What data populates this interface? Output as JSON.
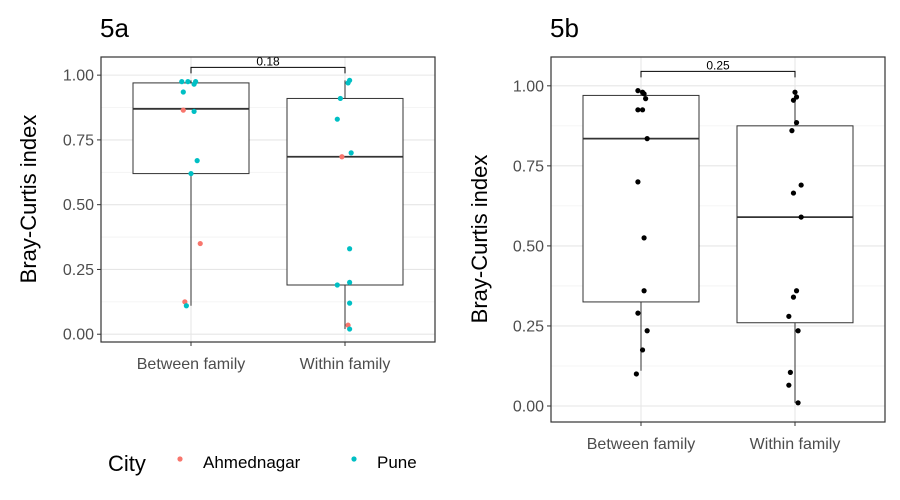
{
  "colors": {
    "Ahmednagar": "#F8766D",
    "Pune": "#00BFC4",
    "Default": "#000000"
  },
  "legend": {
    "title": "City",
    "items": [
      "Ahmednagar",
      "Pune"
    ]
  },
  "chart_data": [
    {
      "id": "5a",
      "type": "boxplot",
      "title": "5a",
      "xlabel": "",
      "ylabel": "Bray-Curtis index",
      "ylim": [
        -0.03,
        1.07
      ],
      "yticks": [
        0.0,
        0.25,
        0.5,
        0.75,
        1.0
      ],
      "ytick_labels": [
        "0.00",
        "0.25",
        "0.50",
        "0.75",
        "1.00"
      ],
      "grid": true,
      "categories": [
        "Between family",
        "Within family"
      ],
      "boxes": [
        {
          "category": "Between family",
          "whisker_low": 0.11,
          "q1": 0.62,
          "median": 0.87,
          "q3": 0.97,
          "whisker_high": 0.98
        },
        {
          "category": "Within family",
          "whisker_low": 0.02,
          "q1": 0.19,
          "median": 0.685,
          "q3": 0.91,
          "whisker_high": 0.98
        }
      ],
      "comparison": {
        "label": "0.18",
        "y": 1.03
      },
      "points": [
        {
          "cat": 0,
          "jitter": -0.06,
          "y": 0.975,
          "city": "Pune"
        },
        {
          "cat": 0,
          "jitter": -0.02,
          "y": 0.975,
          "city": "Pune"
        },
        {
          "cat": 0,
          "jitter": 0.03,
          "y": 0.975,
          "city": "Pune"
        },
        {
          "cat": 0,
          "jitter": 0.02,
          "y": 0.965,
          "city": "Pune"
        },
        {
          "cat": 0,
          "jitter": -0.05,
          "y": 0.935,
          "city": "Pune"
        },
        {
          "cat": 0,
          "jitter": -0.05,
          "y": 0.865,
          "city": "Ahmednagar"
        },
        {
          "cat": 0,
          "jitter": 0.02,
          "y": 0.86,
          "city": "Pune"
        },
        {
          "cat": 0,
          "jitter": 0.04,
          "y": 0.67,
          "city": "Pune"
        },
        {
          "cat": 0,
          "jitter": 0.0,
          "y": 0.62,
          "city": "Pune"
        },
        {
          "cat": 0,
          "jitter": 0.06,
          "y": 0.35,
          "city": "Ahmednagar"
        },
        {
          "cat": 0,
          "jitter": -0.04,
          "y": 0.125,
          "city": "Ahmednagar"
        },
        {
          "cat": 0,
          "jitter": -0.03,
          "y": 0.11,
          "city": "Pune"
        },
        {
          "cat": 1,
          "jitter": 0.03,
          "y": 0.98,
          "city": "Pune"
        },
        {
          "cat": 1,
          "jitter": 0.02,
          "y": 0.97,
          "city": "Pune"
        },
        {
          "cat": 1,
          "jitter": -0.03,
          "y": 0.91,
          "city": "Pune"
        },
        {
          "cat": 1,
          "jitter": -0.05,
          "y": 0.83,
          "city": "Pune"
        },
        {
          "cat": 1,
          "jitter": 0.04,
          "y": 0.7,
          "city": "Pune"
        },
        {
          "cat": 1,
          "jitter": -0.02,
          "y": 0.685,
          "city": "Ahmednagar"
        },
        {
          "cat": 1,
          "jitter": 0.03,
          "y": 0.33,
          "city": "Pune"
        },
        {
          "cat": 1,
          "jitter": 0.03,
          "y": 0.2,
          "city": "Pune"
        },
        {
          "cat": 1,
          "jitter": -0.05,
          "y": 0.19,
          "city": "Pune"
        },
        {
          "cat": 1,
          "jitter": 0.03,
          "y": 0.12,
          "city": "Pune"
        },
        {
          "cat": 1,
          "jitter": 0.02,
          "y": 0.035,
          "city": "Ahmednagar"
        },
        {
          "cat": 1,
          "jitter": 0.03,
          "y": 0.02,
          "city": "Pune"
        }
      ]
    },
    {
      "id": "5b",
      "type": "boxplot",
      "title": "5b",
      "xlabel": "",
      "ylabel": "Bray-Curtis index",
      "ylim": [
        -0.05,
        1.09
      ],
      "yticks": [
        0.0,
        0.25,
        0.5,
        0.75,
        1.0
      ],
      "ytick_labels": [
        "0.00",
        "0.25",
        "0.50",
        "0.75",
        "1.00"
      ],
      "grid": true,
      "categories": [
        "Between family",
        "Within family"
      ],
      "boxes": [
        {
          "category": "Between family",
          "whisker_low": 0.11,
          "q1": 0.325,
          "median": 0.835,
          "q3": 0.97,
          "whisker_high": 0.985
        },
        {
          "category": "Within family",
          "whisker_low": 0.01,
          "q1": 0.26,
          "median": 0.59,
          "q3": 0.875,
          "whisker_high": 0.98
        }
      ],
      "comparison": {
        "label": "0.25",
        "y": 1.045
      },
      "points": [
        {
          "cat": 0,
          "jitter": -0.02,
          "y": 0.985,
          "city": null
        },
        {
          "cat": 0,
          "jitter": 0.01,
          "y": 0.98,
          "city": null
        },
        {
          "cat": 0,
          "jitter": 0.02,
          "y": 0.975,
          "city": null
        },
        {
          "cat": 0,
          "jitter": 0.03,
          "y": 0.96,
          "city": null
        },
        {
          "cat": 0,
          "jitter": -0.02,
          "y": 0.925,
          "city": null
        },
        {
          "cat": 0,
          "jitter": 0.01,
          "y": 0.925,
          "city": null
        },
        {
          "cat": 0,
          "jitter": 0.04,
          "y": 0.835,
          "city": null
        },
        {
          "cat": 0,
          "jitter": -0.02,
          "y": 0.7,
          "city": null
        },
        {
          "cat": 0,
          "jitter": 0.02,
          "y": 0.525,
          "city": null
        },
        {
          "cat": 0,
          "jitter": 0.02,
          "y": 0.36,
          "city": null
        },
        {
          "cat": 0,
          "jitter": -0.02,
          "y": 0.29,
          "city": null
        },
        {
          "cat": 0,
          "jitter": 0.04,
          "y": 0.235,
          "city": null
        },
        {
          "cat": 0,
          "jitter": 0.01,
          "y": 0.175,
          "city": null
        },
        {
          "cat": 0,
          "jitter": -0.03,
          "y": 0.1,
          "city": null
        },
        {
          "cat": 1,
          "jitter": 0.0,
          "y": 0.98,
          "city": null
        },
        {
          "cat": 1,
          "jitter": 0.01,
          "y": 0.965,
          "city": null
        },
        {
          "cat": 1,
          "jitter": -0.01,
          "y": 0.955,
          "city": null
        },
        {
          "cat": 1,
          "jitter": 0.01,
          "y": 0.885,
          "city": null
        },
        {
          "cat": 1,
          "jitter": -0.02,
          "y": 0.86,
          "city": null
        },
        {
          "cat": 1,
          "jitter": 0.04,
          "y": 0.69,
          "city": null
        },
        {
          "cat": 1,
          "jitter": -0.01,
          "y": 0.665,
          "city": null
        },
        {
          "cat": 1,
          "jitter": 0.04,
          "y": 0.59,
          "city": null
        },
        {
          "cat": 1,
          "jitter": 0.01,
          "y": 0.36,
          "city": null
        },
        {
          "cat": 1,
          "jitter": -0.01,
          "y": 0.34,
          "city": null
        },
        {
          "cat": 1,
          "jitter": -0.04,
          "y": 0.28,
          "city": null
        },
        {
          "cat": 1,
          "jitter": 0.02,
          "y": 0.235,
          "city": null
        },
        {
          "cat": 1,
          "jitter": -0.03,
          "y": 0.105,
          "city": null
        },
        {
          "cat": 1,
          "jitter": -0.04,
          "y": 0.065,
          "city": null
        },
        {
          "cat": 1,
          "jitter": 0.02,
          "y": 0.01,
          "city": null
        }
      ]
    }
  ]
}
